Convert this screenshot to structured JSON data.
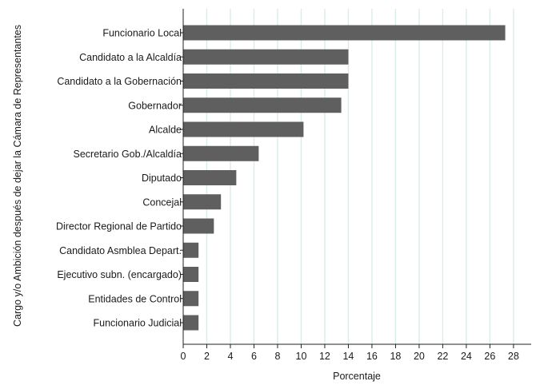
{
  "chart_data": {
    "type": "bar",
    "orientation": "horizontal",
    "categories": [
      "Funcionario Local",
      "Candidato a la Alcaldía",
      "Candidato a la Gobernación",
      "Gobernador",
      "Alcalde",
      "Secretario Gob./Alcaldía",
      "Diputado",
      "Concejal",
      "Director Regional de Partido",
      "Candidato Asmblea Depart.",
      "Ejecutivo subn. (encargado)",
      "Entidades de Control",
      "Funcionario Judicial"
    ],
    "values": [
      27.3,
      14.0,
      14.0,
      13.4,
      10.2,
      6.4,
      4.5,
      3.2,
      2.6,
      1.3,
      1.3,
      1.3,
      1.3
    ],
    "title": "",
    "xlabel": "Porcentaje",
    "ylabel": "Cargo y/o Ambición después de dejar la Cámara de Representantes",
    "xlim": [
      0,
      29.5
    ],
    "xticks": [
      0,
      2,
      4,
      6,
      8,
      10,
      12,
      14,
      16,
      18,
      20,
      22,
      24,
      26,
      28
    ],
    "grid": true,
    "legend": "none",
    "bar_color": "#5f5f5f",
    "grid_color": "#d9ece9"
  }
}
